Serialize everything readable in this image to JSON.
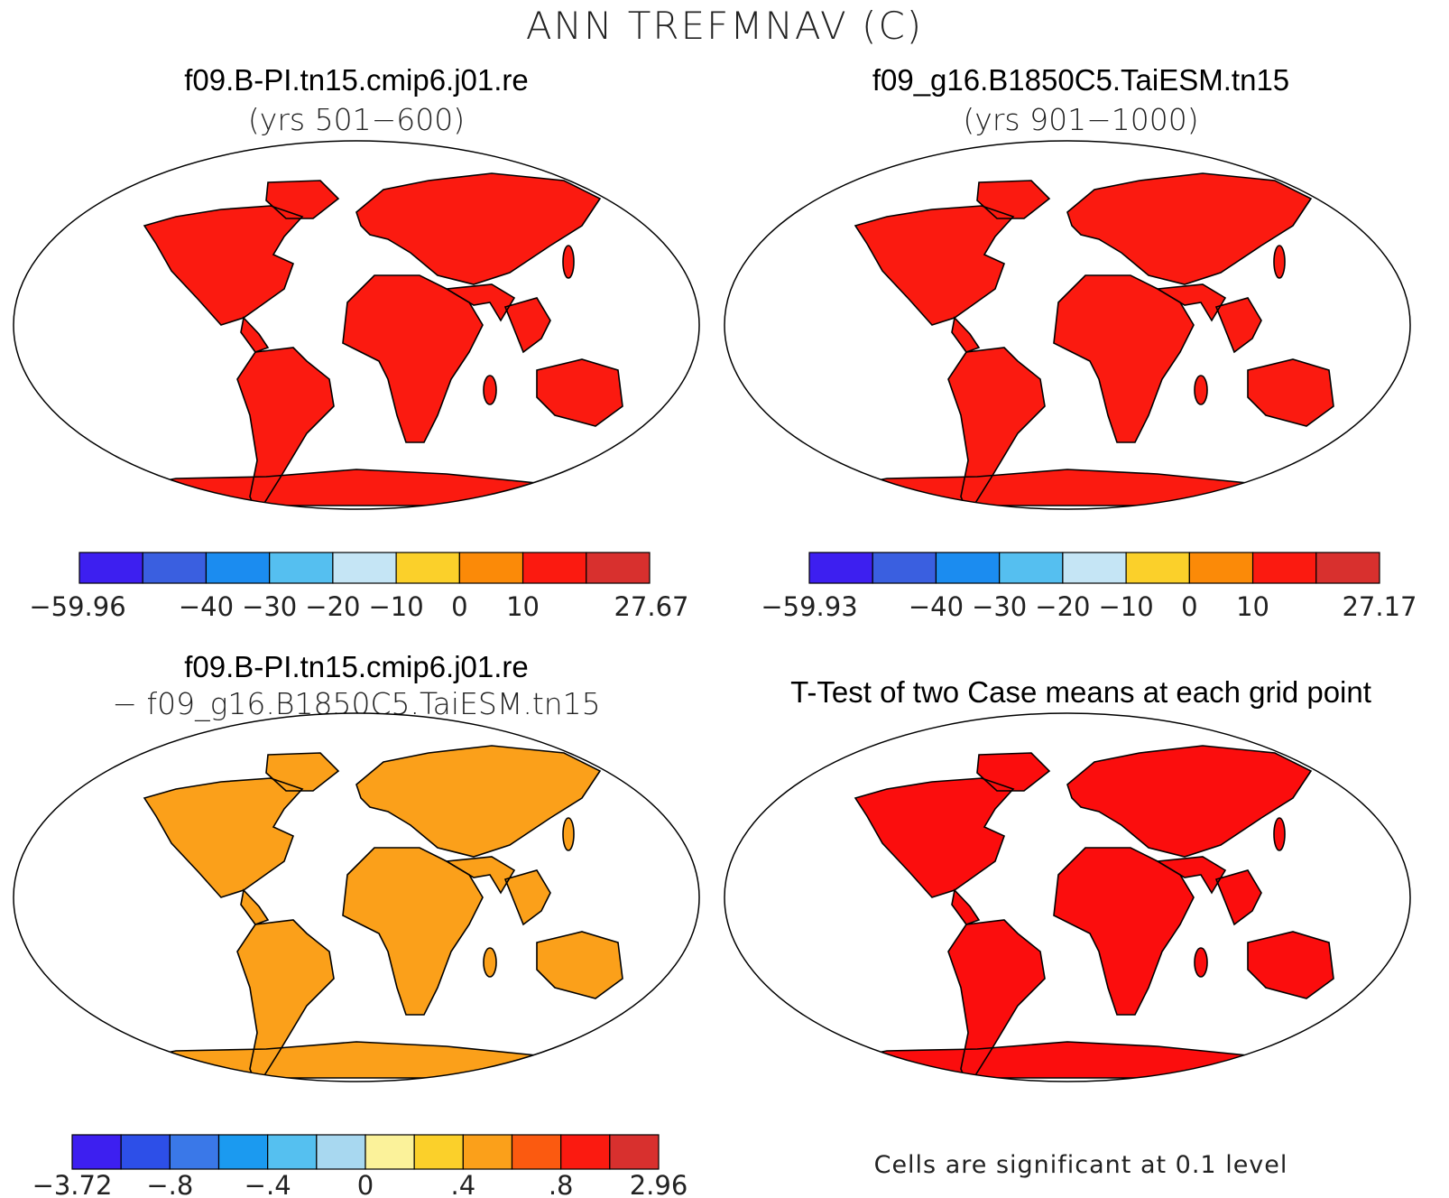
{
  "title": "ANN TREFMNAV (C)",
  "panels": [
    {
      "id": "p1",
      "case": "f09.B-PI.tn15.cmip6.j01.re",
      "subtitle": "(yrs 501−600)",
      "colorbar": {
        "colors": [
          "#3d1ff0",
          "#3a5fe0",
          "#1b8cf0",
          "#55bff0",
          "#c5e5f5",
          "#fbd02a",
          "#fb8a08",
          "#fb1a10",
          "#d8302e"
        ],
        "labels": [
          "−59.96",
          "−40",
          "−30",
          "−20",
          "−10",
          "0",
          "10",
          "27.67"
        ]
      }
    },
    {
      "id": "p2",
      "case": "f09_g16.B1850C5.TaiESM.tn15",
      "subtitle": "(yrs 901−1000)",
      "colorbar": {
        "colors": [
          "#3d1ff0",
          "#3a5fe0",
          "#1b8cf0",
          "#55bff0",
          "#c5e5f5",
          "#fbd02a",
          "#fb8a08",
          "#fb1a10",
          "#d8302e"
        ],
        "labels": [
          "−59.93",
          "−40",
          "−30",
          "−20",
          "−10",
          "0",
          "10",
          "27.17"
        ]
      }
    },
    {
      "id": "p3",
      "case": "f09.B-PI.tn15.cmip6.j01.re",
      "subtitle": "− f09_g16.B1850C5.TaiESM.tn15",
      "colorbar": {
        "colors": [
          "#3d1ff0",
          "#2d4fe8",
          "#3a78e8",
          "#1b9af0",
          "#55c0f0",
          "#a8d8f0",
          "#fbf29a",
          "#fbd02a",
          "#fba01a",
          "#fb5a10",
          "#fb1a10",
          "#d8302e"
        ],
        "labels": [
          "−3.72",
          "−.8",
          "−.4",
          "0",
          ".4",
          ".8",
          "2.96"
        ]
      }
    },
    {
      "id": "p4",
      "case": "T-Test of two Case means at each grid point",
      "note": "Cells are significant at 0.1 level",
      "color": "#fb0d0d"
    }
  ]
}
